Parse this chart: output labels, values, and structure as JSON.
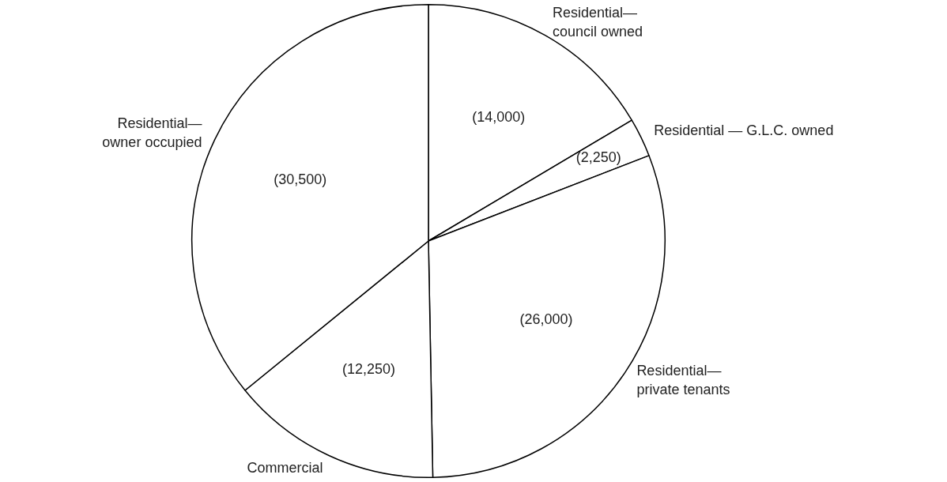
{
  "chart_data": {
    "type": "pie",
    "categories": [
      "Residential—\ncouncil owned",
      "Residential — G.L.C. owned",
      "Residential—\nprivate tenants",
      "Commercial",
      "Residential—\nowner occupied"
    ],
    "values": [
      14000,
      2250,
      26000,
      12250,
      30500
    ],
    "value_labels": [
      "(14,000)",
      "(2,250)",
      "(26,000)",
      "(12,250)",
      "(30,500)"
    ],
    "colors": [
      "#ffffff",
      "#ffffff",
      "#ffffff",
      "#ffffff",
      "#ffffff"
    ],
    "legend": false
  }
}
